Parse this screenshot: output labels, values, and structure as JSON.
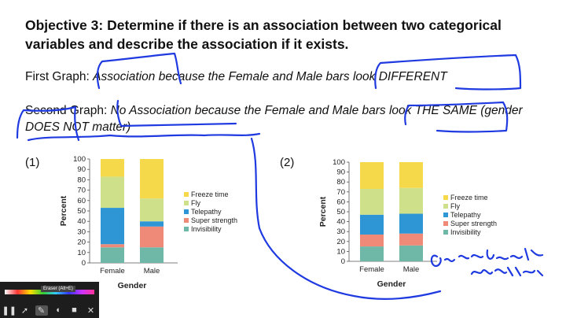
{
  "slide": {
    "title": "Objective 3: Determine if there is an association between two categorical variables and describe the association if it exists.",
    "first_label": "First Graph:",
    "first_text": "Association because the Female and Male bars look DIFFERENT",
    "second_label": "Second Graph:",
    "second_text": "No Association because the Female and Male bars look THE SAME (gender DOES NOT matter)",
    "num1": "(1)",
    "num2": "(2)",
    "handwriting": "Gender doesn't matter"
  },
  "toolbar": {
    "tooltip": "Eraser (Alt+E)",
    "icons": [
      "pause-icon",
      "pointer-icon",
      "pen-icon",
      "eraser-icon",
      "camera-icon",
      "close-icon"
    ]
  },
  "colors": {
    "ink": "#1f3ae0",
    "freeze": "#f6d94a",
    "fly": "#cfe08a",
    "telepathy": "#2f96d6",
    "super": "#f08a78",
    "invis": "#6fb8a8"
  },
  "chart_data": [
    {
      "type": "bar",
      "stacked": true,
      "categories": [
        "Female",
        "Male"
      ],
      "xlabel": "Gender",
      "ylabel": "Percent",
      "ylim": [
        0,
        100
      ],
      "ticks": [
        0,
        10,
        20,
        30,
        40,
        50,
        60,
        70,
        80,
        90,
        100
      ],
      "series": [
        {
          "name": "Invisibility",
          "values": [
            15,
            15
          ]
        },
        {
          "name": "Super strength",
          "values": [
            3,
            20
          ]
        },
        {
          "name": "Telepathy",
          "values": [
            35,
            5
          ]
        },
        {
          "name": "Fly",
          "values": [
            30,
            22
          ]
        },
        {
          "name": "Freeze time",
          "values": [
            17,
            38
          ]
        }
      ],
      "legend_order": [
        "Freeze time",
        "Fly",
        "Telepathy",
        "Super strength",
        "Invisibility"
      ]
    },
    {
      "type": "bar",
      "stacked": true,
      "categories": [
        "Female",
        "Male"
      ],
      "xlabel": "Gender",
      "ylabel": "Percent",
      "ylim": [
        0,
        100
      ],
      "ticks": [
        0,
        10,
        20,
        30,
        40,
        50,
        60,
        70,
        80,
        90,
        100
      ],
      "series": [
        {
          "name": "Invisibility",
          "values": [
            15,
            16
          ]
        },
        {
          "name": "Super strength",
          "values": [
            12,
            12
          ]
        },
        {
          "name": "Telepathy",
          "values": [
            20,
            20
          ]
        },
        {
          "name": "Fly",
          "values": [
            26,
            26
          ]
        },
        {
          "name": "Freeze time",
          "values": [
            27,
            26
          ]
        }
      ],
      "legend_order": [
        "Freeze time",
        "Fly",
        "Telepathy",
        "Super strength",
        "Invisibility"
      ]
    }
  ]
}
